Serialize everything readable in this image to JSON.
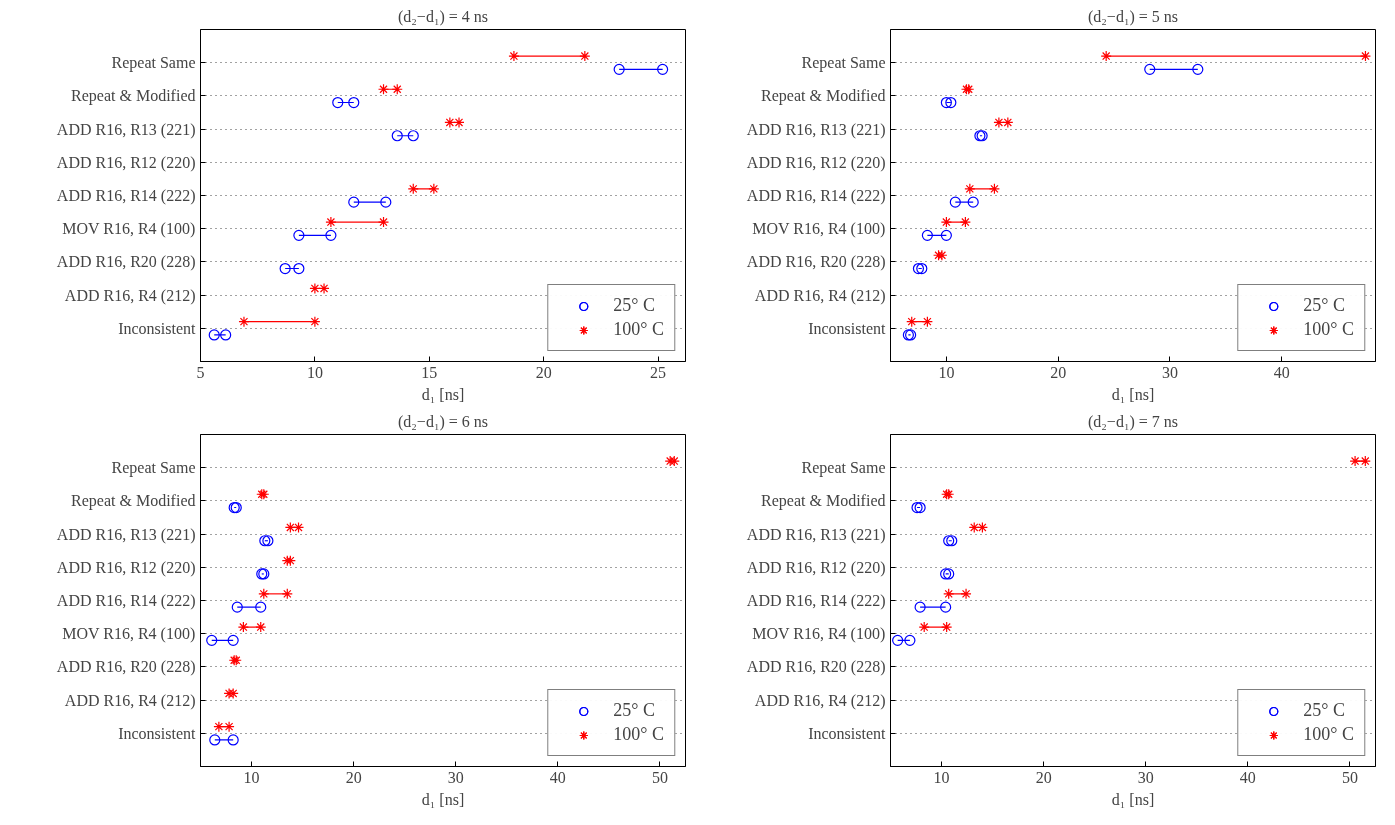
{
  "chart_data": [
    {
      "type": "bar",
      "orientation": "horizontal",
      "title": "(d₂−d₁) = 4 ns",
      "xlabel": "d₁ [ns]",
      "categories": [
        "Repeat Same",
        "Repeat & Modified",
        "ADD R16, R13 (221)",
        "ADD R16, R12 (220)",
        "ADD R16, R14 (222)",
        "MOV R16, R4 (100)",
        "ADD R16, R20 (228)",
        "ADD R16, R4 (212)",
        "Inconsistent"
      ],
      "xlim": [
        5,
        26.2
      ],
      "xticks": [
        5,
        10,
        15,
        20,
        25
      ],
      "grid": "y",
      "legend": "bottom right",
      "series": [
        {
          "name": "25° C",
          "color": "#0000ff",
          "base": [
            23.3,
            11.0,
            13.6,
            null,
            11.7,
            9.3,
            8.7,
            null,
            5.6
          ],
          "values": [
            1.9,
            0.7,
            0.7,
            null,
            1.4,
            1.4,
            0.6,
            null,
            0.5
          ]
        },
        {
          "type": "scatter",
          "color": "#0000ff",
          "marker": "circle",
          "values": [
            23.3,
            11.0,
            13.6,
            null,
            11.7,
            9.3,
            8.7,
            null,
            5.6
          ]
        },
        {
          "type": "scatter",
          "color": "#0000ff",
          "marker": "circle",
          "values": [
            25.2,
            11.7,
            14.3,
            null,
            13.1,
            10.7,
            9.3,
            null,
            6.1
          ]
        },
        {
          "name": "100° C",
          "color": "#ff0000",
          "base": [
            18.7,
            13.0,
            null,
            null,
            14.3,
            10.7,
            null,
            null,
            6.9
          ],
          "values": [
            3.1,
            0.6,
            null,
            null,
            0.9,
            2.3,
            null,
            null,
            3.1
          ]
        },
        {
          "type": "scatter",
          "color": "#ff0000",
          "marker": "cross",
          "values": [
            18.7,
            13.0,
            15.9,
            null,
            14.3,
            10.7,
            null,
            10.0,
            6.9
          ]
        },
        {
          "type": "scatter",
          "color": "#ff0000",
          "marker": "cross",
          "values": [
            21.8,
            13.6,
            16.3,
            null,
            15.2,
            13.0,
            null,
            10.4,
            10.0
          ]
        }
      ]
    },
    {
      "type": "bar",
      "orientation": "horizontal",
      "title": "(d₂−d₁) = 5 ns",
      "xlabel": "d₁ [ns]",
      "categories": [
        "Repeat Same",
        "Repeat & Modified",
        "ADD R16, R13 (221)",
        "ADD R16, R12 (220)",
        "ADD R16, R14 (222)",
        "MOV R16, R4 (100)",
        "ADD R16, R20 (228)",
        "ADD R16, R4 (212)",
        "Inconsistent"
      ],
      "xlim": [
        5,
        48.4
      ],
      "xticks": [
        10,
        20,
        30,
        40
      ],
      "grid": "y",
      "legend": "bottom right",
      "series": [
        {
          "name": "25° C",
          "color": "#0000ff",
          "base": [
            28.2,
            10.0,
            13.0,
            null,
            10.8,
            8.3,
            7.5,
            null,
            6.6
          ],
          "values": [
            4.3,
            0.4,
            0.2,
            null,
            1.6,
            1.7,
            0.3,
            null,
            0.2
          ]
        },
        {
          "type": "scatter",
          "color": "#0000ff",
          "marker": "circle",
          "values": [
            28.2,
            10.0,
            13.0,
            null,
            10.8,
            8.3,
            7.5,
            null,
            6.6
          ]
        },
        {
          "type": "scatter",
          "color": "#0000ff",
          "marker": "circle",
          "values": [
            32.5,
            10.4,
            13.2,
            null,
            12.4,
            10.0,
            7.8,
            null,
            6.8
          ]
        },
        {
          "name": "100° C",
          "color": "#ff0000",
          "base": [
            24.3,
            null,
            null,
            null,
            12.1,
            10.0,
            null,
            null,
            6.9
          ],
          "values": [
            23.2,
            null,
            null,
            null,
            2.2,
            1.7,
            null,
            null,
            1.4
          ]
        },
        {
          "type": "scatter",
          "color": "#ff0000",
          "marker": "cross",
          "values": [
            24.3,
            11.8,
            14.7,
            null,
            12.1,
            10.0,
            9.3,
            null,
            6.9
          ]
        },
        {
          "type": "scatter",
          "color": "#ff0000",
          "marker": "cross",
          "values": [
            47.5,
            12.0,
            15.5,
            null,
            14.3,
            11.7,
            9.6,
            null,
            8.3
          ]
        }
      ]
    },
    {
      "type": "bar",
      "orientation": "horizontal",
      "title": "(d₂−d₁) = 6 ns",
      "xlabel": "d₁ [ns]",
      "categories": [
        "Repeat Same",
        "Repeat & Modified",
        "ADD R16, R13 (221)",
        "ADD R16, R12 (220)",
        "ADD R16, R14 (222)",
        "MOV R16, R4 (100)",
        "ADD R16, R20 (228)",
        "ADD R16, R4 (212)",
        "Inconsistent"
      ],
      "xlim": [
        5,
        52.5
      ],
      "xticks": [
        10,
        20,
        30,
        40,
        50
      ],
      "grid": "y",
      "legend": "bottom right",
      "series": [
        {
          "name": "25° C",
          "color": "#0000ff",
          "base": [
            null,
            8.3,
            11.3,
            11.0,
            8.6,
            6.1,
            null,
            null,
            6.4
          ],
          "values": [
            null,
            0.2,
            0.3,
            0.2,
            2.3,
            2.1,
            null,
            null,
            1.8
          ]
        },
        {
          "type": "scatter",
          "color": "#0000ff",
          "marker": "circle",
          "values": [
            null,
            8.3,
            11.3,
            11.0,
            8.6,
            6.1,
            null,
            null,
            6.4
          ]
        },
        {
          "type": "scatter",
          "color": "#0000ff",
          "marker": "circle",
          "values": [
            null,
            8.5,
            11.6,
            11.2,
            10.9,
            8.2,
            null,
            null,
            8.2
          ]
        },
        {
          "name": "100° C",
          "color": "#ff0000",
          "base": [
            null,
            null,
            13.8,
            null,
            11.2,
            9.2,
            null,
            null,
            6.8
          ],
          "values": [
            null,
            null,
            0.8,
            null,
            2.3,
            1.7,
            null,
            null,
            1.0
          ]
        },
        {
          "type": "scatter",
          "color": "#ff0000",
          "marker": "cross",
          "values": [
            51.0,
            11.0,
            13.8,
            13.5,
            11.2,
            9.2,
            8.3,
            7.8,
            6.8
          ]
        },
        {
          "type": "scatter",
          "color": "#ff0000",
          "marker": "cross",
          "values": [
            51.4,
            11.2,
            14.6,
            13.8,
            13.5,
            10.9,
            8.5,
            8.2,
            7.8
          ]
        }
      ]
    },
    {
      "type": "bar",
      "orientation": "horizontal",
      "title": "(d₂−d₁) = 7 ns",
      "xlabel": "d₁ [ns]",
      "categories": [
        "Repeat Same",
        "Repeat & Modified",
        "ADD R16, R13 (221)",
        "ADD R16, R12 (220)",
        "ADD R16, R14 (222)",
        "MOV R16, R4 (100)",
        "ADD R16, R20 (228)",
        "ADD R16, R4 (212)",
        "Inconsistent"
      ],
      "xlim": [
        5,
        52.5
      ],
      "xticks": [
        10,
        20,
        30,
        40,
        50
      ],
      "grid": "y",
      "legend": "bottom right",
      "series": [
        {
          "name": "25° C",
          "color": "#0000ff",
          "base": [
            null,
            7.6,
            10.7,
            10.4,
            7.9,
            5.7,
            null,
            null,
            null
          ],
          "values": [
            null,
            0.3,
            0.3,
            0.3,
            2.5,
            1.2,
            null,
            null,
            null
          ]
        },
        {
          "type": "scatter",
          "color": "#0000ff",
          "marker": "circle",
          "values": [
            null,
            7.6,
            10.7,
            10.4,
            7.9,
            5.7,
            null,
            null,
            null
          ]
        },
        {
          "type": "scatter",
          "color": "#0000ff",
          "marker": "circle",
          "values": [
            null,
            7.9,
            11.0,
            10.7,
            10.4,
            6.9,
            null,
            null,
            null
          ]
        },
        {
          "name": "100° C",
          "color": "#ff0000",
          "base": [
            50.5,
            null,
            null,
            null,
            10.7,
            8.3,
            null,
            null,
            null
          ],
          "values": [
            1.0,
            null,
            null,
            null,
            1.7,
            2.2,
            null,
            null,
            null
          ]
        },
        {
          "type": "scatter",
          "color": "#ff0000",
          "marker": "cross",
          "values": [
            50.5,
            10.5,
            13.2,
            null,
            10.7,
            8.3,
            null,
            null,
            null
          ]
        },
        {
          "type": "scatter",
          "color": "#ff0000",
          "marker": "cross",
          "values": [
            51.5,
            10.7,
            14.0,
            null,
            12.4,
            10.5,
            null,
            null,
            null
          ]
        }
      ]
    }
  ]
}
